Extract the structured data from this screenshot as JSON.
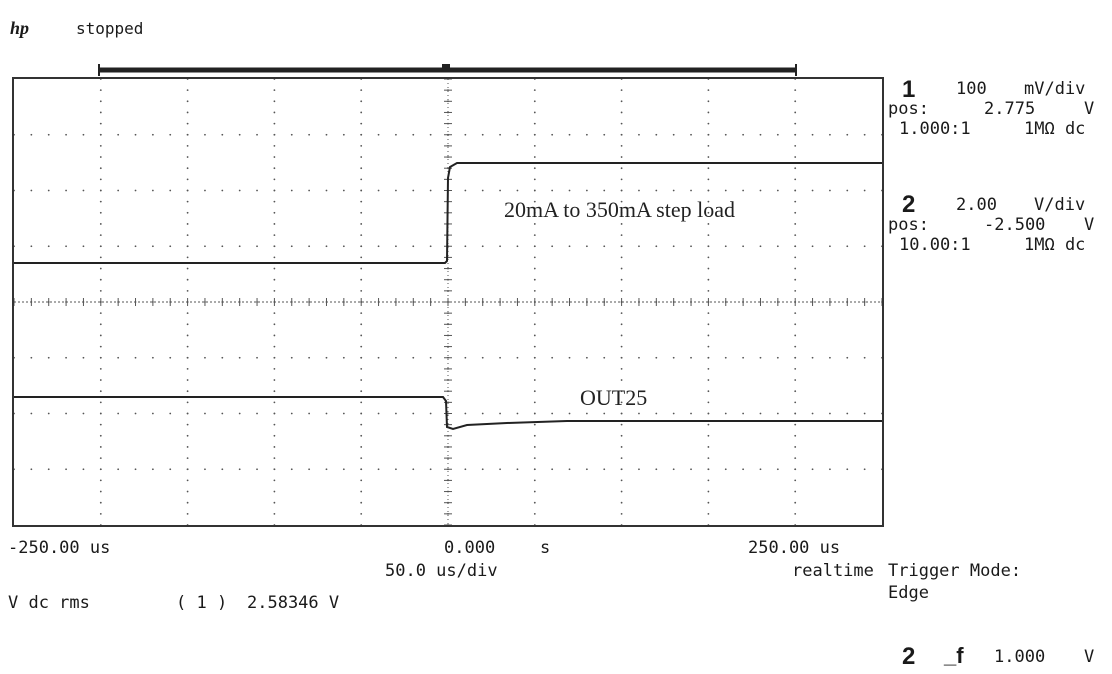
{
  "header": {
    "logo": "hp",
    "status": "stopped"
  },
  "channels": [
    {
      "number": "1",
      "scale": "100",
      "scale_unit": "mV/div",
      "pos_label": "pos:",
      "pos_value": "2.775",
      "pos_unit": "V",
      "probe_ratio": "1.000:1",
      "coupling": "1MΩ dc"
    },
    {
      "number": "2",
      "scale": "2.00",
      "scale_unit": "V/div",
      "pos_label": "pos:",
      "pos_value": "-2.500",
      "pos_unit": "V",
      "probe_ratio": "10.00:1",
      "coupling": "1MΩ dc"
    }
  ],
  "annotations": {
    "load_step": "20mA to 350mA step load",
    "output": "OUT25"
  },
  "timebase": {
    "left": "-250.00 us",
    "center": "0.000",
    "center_unit": "s",
    "right": "250.00 us",
    "scale": "50.0 us/div",
    "mode": "realtime"
  },
  "measurement": {
    "label": "V dc rms",
    "channel": "( 1 )",
    "value": "2.58346 V"
  },
  "trigger": {
    "mode_label": "Trigger Mode:",
    "mode_value": "Edge",
    "source": "2",
    "slope_symbol": "_f",
    "level": "1.000",
    "level_unit": "V"
  },
  "colors": {
    "trace": "#222222",
    "grid": "#555555",
    "border": "#333333"
  }
}
